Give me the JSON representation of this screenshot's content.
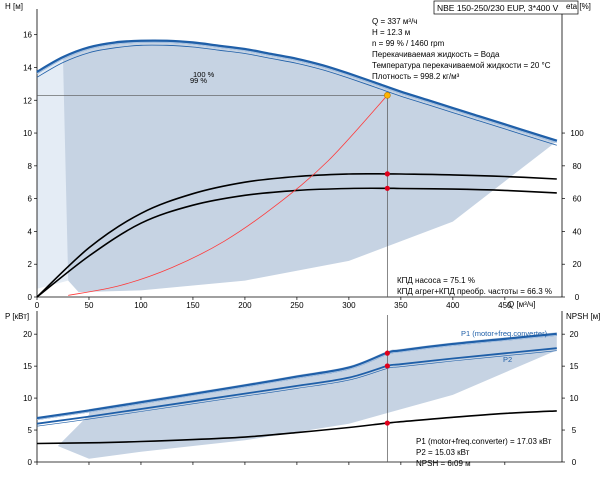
{
  "header": {
    "title": "NBE 150-250/230 EUP, 3*400 V"
  },
  "info": {
    "lines": [
      "Q = 337 м³/ч",
      "H = 12.3 м",
      "n = 99 % / 1460 rpm",
      "Перекачиваемая жидкость = Вода",
      "Температура перекачиваемой жидкости = 20 °C",
      "Плотность = 998.2 кг/м³"
    ],
    "eff_lines": [
      "КПД насоса = 75.1 %",
      "КПД агрег+КПД преобр. частоты = 66.3 %"
    ],
    "power_lines": [
      "P1 (motor+freq.converter) = 17.03 кВт",
      "P2 = 15.03 кВт",
      "NPSH = 6.09 м"
    ]
  },
  "colors": {
    "envelope_fill": "#c6d3e3",
    "curve_blue": "#1f5fa8",
    "curve_black": "#000000",
    "system_curve": "#ff3a3a",
    "duty_point_fill": "#ffb400",
    "marker_red": "#e0001b",
    "axis": "#000000"
  },
  "chart_data": [
    {
      "type": "line",
      "title": "",
      "xlabel": "Q [м³/ч]",
      "ylabel_left": "H [м]",
      "ylabel_right": "eta [%]",
      "x_ticks": [
        0,
        50,
        100,
        150,
        200,
        250,
        300,
        350,
        400,
        450
      ],
      "y_ticks_left": [
        0,
        2,
        4,
        6,
        8,
        10,
        12,
        14,
        16
      ],
      "y_ticks_right": [
        0,
        20,
        40,
        60,
        80,
        100
      ],
      "xlim": [
        0,
        505
      ],
      "ylim_left": [
        0,
        17.2
      ],
      "ylim_right": [
        0,
        172
      ],
      "grid": false,
      "duty_point": {
        "x": 337,
        "y": 12.3
      },
      "series": [
        {
          "name": "100 %",
          "axis": "left",
          "x": [
            0,
            25,
            50,
            75,
            100,
            125,
            150,
            175,
            200,
            225,
            250,
            275,
            300,
            325,
            350,
            375,
            400,
            425,
            450,
            475,
            500
          ],
          "y": [
            13.7,
            14.6,
            15.2,
            15.5,
            15.6,
            15.6,
            15.5,
            15.3,
            15.1,
            14.8,
            14.5,
            14.1,
            13.6,
            13.05,
            12.5,
            12.0,
            11.5,
            11.0,
            10.5,
            10.0,
            9.5
          ]
        },
        {
          "name": "99 %",
          "axis": "left",
          "x": [
            0,
            25,
            50,
            75,
            100,
            125,
            150,
            175,
            200,
            225,
            250,
            275,
            300,
            325,
            350,
            375,
            400,
            425,
            450,
            475,
            500
          ],
          "y": [
            13.4,
            14.3,
            14.9,
            15.2,
            15.35,
            15.35,
            15.25,
            15.05,
            14.85,
            14.55,
            14.25,
            13.85,
            13.35,
            12.8,
            12.25,
            11.75,
            11.25,
            10.75,
            10.25,
            9.75,
            9.25
          ]
        },
        {
          "name": "",
          "axis": "right",
          "x": [
            0,
            50,
            100,
            150,
            200,
            250,
            300,
            337,
            350,
            400,
            450,
            500
          ],
          "y": [
            0,
            30,
            51,
            63,
            70,
            73.5,
            75,
            75.1,
            75,
            74.5,
            73.5,
            72
          ]
        },
        {
          "name": "",
          "axis": "right",
          "x": [
            0,
            50,
            100,
            150,
            200,
            250,
            300,
            337,
            350,
            400,
            450,
            500
          ],
          "y": [
            0,
            25,
            45,
            56,
            62,
            65,
            66.2,
            66.3,
            66.2,
            65.8,
            65,
            63.5
          ]
        },
        {
          "name": "",
          "axis": "left",
          "x": [
            30,
            80,
            130,
            180,
            230,
            280,
            337
          ],
          "y": [
            0.1,
            0.7,
            1.8,
            3.4,
            5.6,
            8.3,
            12.3
          ]
        }
      ]
    },
    {
      "type": "line",
      "title": "",
      "xlabel": "",
      "ylabel_left": "P [кВт]",
      "ylabel_right": "NPSH [м]",
      "y_ticks_left": [
        0,
        5,
        10,
        15,
        20
      ],
      "y_ticks_right": [
        0,
        5,
        10,
        15,
        20
      ],
      "xlim": [
        0,
        505
      ],
      "ylim_left": [
        0,
        23
      ],
      "ylim_right": [
        0,
        23
      ],
      "grid": false,
      "series": [
        {
          "name": "P1 (motor+freq.converter)",
          "axis": "left",
          "x": [
            0,
            50,
            100,
            150,
            200,
            250,
            300,
            337,
            350,
            400,
            450,
            500
          ],
          "y": [
            6.8,
            8.0,
            9.3,
            10.6,
            11.9,
            13.3,
            14.7,
            17.03,
            17.4,
            18.4,
            19.2,
            20.0
          ]
        },
        {
          "name": "P2",
          "axis": "left",
          "x": [
            0,
            50,
            100,
            150,
            200,
            250,
            300,
            337,
            350,
            400,
            450,
            500
          ],
          "y": [
            6.0,
            7.1,
            8.3,
            9.5,
            10.7,
            11.9,
            13.2,
            15.03,
            15.3,
            16.2,
            17.0,
            17.8
          ]
        },
        {
          "name": "",
          "axis": "right",
          "x": [
            0,
            50,
            100,
            150,
            200,
            250,
            300,
            337,
            350,
            400,
            450,
            500
          ],
          "y": [
            2.9,
            3.0,
            3.2,
            3.5,
            3.9,
            4.6,
            5.4,
            6.09,
            6.3,
            7.0,
            7.6,
            8.0
          ]
        }
      ]
    }
  ]
}
